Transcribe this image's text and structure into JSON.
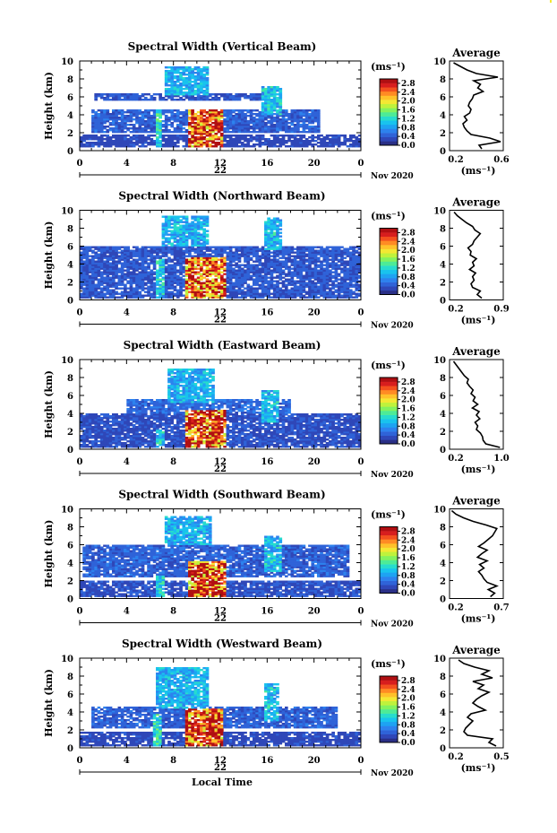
{
  "figure": {
    "xlabel": "Local Time",
    "date_suffix": "Nov 2020"
  },
  "colorscale": [
    "#2a2f86",
    "#2f47b8",
    "#2f63d8",
    "#2d82ee",
    "#1ea3f2",
    "#19c3ee",
    "#27dccd",
    "#4deb97",
    "#83f25f",
    "#bff23c",
    "#f3e833",
    "#ffc12a",
    "#ff8b24",
    "#f3501e",
    "#d71e1e",
    "#b00f12"
  ],
  "chart_data": [
    {
      "type": "heatmap",
      "title": "Spectral Width (Vertical Beam)",
      "ylabel": "Height (km)",
      "xlabel": "",
      "x_ticks": [
        "0",
        "4",
        "8",
        "12",
        "16",
        "20",
        "0"
      ],
      "y_ticks": [
        "0",
        "2",
        "4",
        "6",
        "8",
        "10"
      ],
      "xlim": [
        0,
        24
      ],
      "ylim": [
        0,
        10
      ],
      "date_label": "22",
      "colorbar": {
        "unit": "(ms⁻¹)",
        "ticks": [
          "2.8",
          "2.4",
          "2.0",
          "1.6",
          "1.2",
          "0.8",
          "0.4",
          "0.0"
        ],
        "range": [
          0,
          3.0
        ]
      },
      "regions": [
        {
          "t": [
            0,
            24
          ],
          "h": [
            0.5,
            1.8
          ],
          "v": 0.3
        },
        {
          "t": [
            1,
            20.5
          ],
          "h": [
            2.0,
            4.5
          ],
          "v": 0.45
        },
        {
          "t": [
            1.2,
            17
          ],
          "h": [
            5.6,
            6.4
          ],
          "v": 0.4
        },
        {
          "t": [
            7.2,
            11
          ],
          "h": [
            6.2,
            9.3
          ],
          "v": 0.9
        },
        {
          "t": [
            6.4,
            7.0
          ],
          "h": [
            0.5,
            4.5
          ],
          "v": 1.2
        },
        {
          "t": [
            9.2,
            12.2
          ],
          "h": [
            0.5,
            4.6
          ],
          "v": 2.7
        },
        {
          "t": [
            15.6,
            17.2
          ],
          "h": [
            4.0,
            7.2
          ],
          "v": 1.0
        }
      ],
      "profile": {
        "xlim": [
          0.2,
          0.6
        ],
        "xticks": [
          "0.2",
          "0.6"
        ],
        "xlabel": "(ms⁻¹)",
        "title": "Average",
        "h": [
          0.2,
          0.6,
          1.0,
          1.4,
          1.8,
          2.2,
          2.6,
          3.0,
          3.4,
          3.8,
          4.2,
          4.6,
          5.0,
          5.4,
          5.8,
          6.2,
          6.6,
          7.0,
          7.4,
          7.8,
          8.2,
          8.6,
          9.0,
          9.4,
          9.8
        ],
        "v": [
          0.44,
          0.42,
          0.58,
          0.5,
          0.36,
          0.33,
          0.31,
          0.3,
          0.33,
          0.31,
          0.35,
          0.36,
          0.34,
          0.35,
          0.37,
          0.38,
          0.45,
          0.41,
          0.43,
          0.38,
          0.56,
          0.4,
          0.33,
          0.28,
          0.23
        ]
      }
    },
    {
      "type": "heatmap",
      "title": "Spectral Width (Northward Beam)",
      "ylabel": "Height (km)",
      "xlabel": "",
      "x_ticks": [
        "0",
        "4",
        "8",
        "12",
        "16",
        "20",
        "0"
      ],
      "y_ticks": [
        "0",
        "2",
        "4",
        "6",
        "8",
        "10"
      ],
      "xlim": [
        0,
        24
      ],
      "ylim": [
        0,
        10
      ],
      "date_label": "22",
      "colorbar": {
        "unit": "(ms⁻¹)",
        "ticks": [
          "2.8",
          "2.4",
          "2.0",
          "1.6",
          "1.2",
          "0.8",
          "0.4",
          "0.0"
        ],
        "range": [
          0,
          3.0
        ]
      },
      "regions": [
        {
          "t": [
            0,
            24
          ],
          "h": [
            0.3,
            6.0
          ],
          "v": 0.4
        },
        {
          "t": [
            7.0,
            11.0
          ],
          "h": [
            6.0,
            9.4
          ],
          "v": 0.9
        },
        {
          "t": [
            6.6,
            7.2
          ],
          "h": [
            0.3,
            4.5
          ],
          "v": 1.1
        },
        {
          "t": [
            9.0,
            12.4
          ],
          "h": [
            0.3,
            4.8
          ],
          "v": 2.6
        },
        {
          "t": [
            15.8,
            17.2
          ],
          "h": [
            5.6,
            9.2
          ],
          "v": 1.0
        }
      ],
      "profile": {
        "xlim": [
          0.2,
          0.9
        ],
        "xticks": [
          "0.2",
          "0.9"
        ],
        "xlabel": "(ms⁻¹)",
        "title": "Average",
        "h": [
          0.2,
          0.6,
          1.0,
          1.4,
          1.8,
          2.2,
          2.6,
          3.0,
          3.4,
          3.8,
          4.2,
          4.6,
          5.0,
          5.4,
          5.8,
          6.2,
          6.6,
          7.0,
          7.4,
          7.8,
          8.2,
          8.6,
          9.0,
          9.4,
          9.8
        ],
        "v": [
          0.62,
          0.56,
          0.6,
          0.5,
          0.48,
          0.52,
          0.5,
          0.54,
          0.46,
          0.52,
          0.5,
          0.55,
          0.47,
          0.48,
          0.44,
          0.5,
          0.52,
          0.56,
          0.6,
          0.53,
          0.5,
          0.42,
          0.36,
          0.3,
          0.26
        ]
      }
    },
    {
      "type": "heatmap",
      "title": "Spectral Width (Eastward Beam)",
      "ylabel": "Height (km)",
      "xlabel": "",
      "x_ticks": [
        "0",
        "4",
        "8",
        "12",
        "16",
        "20",
        "0"
      ],
      "y_ticks": [
        "0",
        "2",
        "4",
        "6",
        "8",
        "10"
      ],
      "xlim": [
        0,
        24
      ],
      "ylim": [
        0,
        10
      ],
      "date_label": "22",
      "colorbar": {
        "unit": "(ms⁻¹)",
        "ticks": [
          "2.8",
          "2.4",
          "2.0",
          "1.6",
          "1.2",
          "0.8",
          "0.4",
          "0.0"
        ],
        "range": [
          0,
          3.0
        ]
      },
      "regions": [
        {
          "t": [
            0,
            24
          ],
          "h": [
            0.2,
            4.0
          ],
          "v": 0.35
        },
        {
          "t": [
            4.0,
            18.0
          ],
          "h": [
            4.0,
            5.6
          ],
          "v": 0.5
        },
        {
          "t": [
            7.4,
            11.6
          ],
          "h": [
            5.2,
            9.0
          ],
          "v": 0.9
        },
        {
          "t": [
            6.5,
            7.2
          ],
          "h": [
            0.2,
            2.2
          ],
          "v": 1.0
        },
        {
          "t": [
            9.0,
            12.4
          ],
          "h": [
            0.2,
            4.4
          ],
          "v": 2.6
        },
        {
          "t": [
            15.6,
            17.0
          ],
          "h": [
            3.0,
            6.5
          ],
          "v": 1.0
        }
      ],
      "profile": {
        "xlim": [
          0.2,
          1.0
        ],
        "xticks": [
          "0.2",
          "1.0"
        ],
        "xlabel": "(ms⁻¹)",
        "title": "Average",
        "h": [
          0.2,
          0.6,
          1.0,
          1.4,
          1.8,
          2.2,
          2.6,
          3.0,
          3.4,
          3.8,
          4.2,
          4.6,
          5.0,
          5.4,
          5.8,
          6.2,
          6.6,
          7.0,
          7.4,
          7.8,
          8.2,
          8.6,
          9.0,
          9.4,
          9.8
        ],
        "v": [
          0.95,
          0.74,
          0.7,
          0.69,
          0.66,
          0.6,
          0.62,
          0.58,
          0.65,
          0.6,
          0.64,
          0.54,
          0.62,
          0.55,
          0.58,
          0.52,
          0.55,
          0.5,
          0.46,
          0.48,
          0.42,
          0.38,
          0.34,
          0.3,
          0.26
        ]
      }
    },
    {
      "type": "heatmap",
      "title": "Spectral Width (Southward Beam)",
      "ylabel": "Height (km)",
      "xlabel": "",
      "x_ticks": [
        "0",
        "4",
        "8",
        "12",
        "16",
        "20",
        "0"
      ],
      "y_ticks": [
        "0",
        "2",
        "4",
        "6",
        "8",
        "10"
      ],
      "xlim": [
        0,
        24
      ],
      "ylim": [
        0,
        10
      ],
      "date_label": "22",
      "colorbar": {
        "unit": "(ms⁻¹)",
        "ticks": [
          "2.8",
          "2.4",
          "2.0",
          "1.6",
          "1.2",
          "0.8",
          "0.4",
          "0.0"
        ],
        "range": [
          0,
          3.0
        ]
      },
      "regions": [
        {
          "t": [
            0,
            24
          ],
          "h": [
            0.2,
            2.0
          ],
          "v": 0.35
        },
        {
          "t": [
            0.3,
            23
          ],
          "h": [
            2.4,
            6.0
          ],
          "v": 0.45
        },
        {
          "t": [
            7.2,
            11.2
          ],
          "h": [
            6.0,
            9.2
          ],
          "v": 0.9
        },
        {
          "t": [
            6.6,
            7.2
          ],
          "h": [
            0.2,
            2.6
          ],
          "v": 1.1
        },
        {
          "t": [
            9.2,
            12.4
          ],
          "h": [
            0.2,
            4.2
          ],
          "v": 2.6
        },
        {
          "t": [
            15.8,
            17.2
          ],
          "h": [
            3.0,
            7.0
          ],
          "v": 1.0
        }
      ],
      "profile": {
        "xlim": [
          0.2,
          0.7
        ],
        "xticks": [
          "0.2",
          "0.7"
        ],
        "xlabel": "(ms⁻¹)",
        "title": "Average",
        "h": [
          0.2,
          0.6,
          1.0,
          1.4,
          1.8,
          2.2,
          2.6,
          3.0,
          3.4,
          3.8,
          4.2,
          4.6,
          5.0,
          5.4,
          5.8,
          6.2,
          6.6,
          7.0,
          7.4,
          7.8,
          8.2,
          8.6,
          9.0,
          9.4,
          9.8
        ],
        "v": [
          0.58,
          0.62,
          0.56,
          0.64,
          0.55,
          0.52,
          0.5,
          0.47,
          0.52,
          0.48,
          0.55,
          0.46,
          0.5,
          0.55,
          0.47,
          0.52,
          0.56,
          0.6,
          0.62,
          0.64,
          0.54,
          0.42,
          0.33,
          0.26,
          0.22
        ]
      }
    },
    {
      "type": "heatmap",
      "title": "Spectral Width (Westward Beam)",
      "ylabel": "Height (km)",
      "xlabel": "Local Time",
      "x_ticks": [
        "0",
        "4",
        "8",
        "12",
        "16",
        "20",
        "0"
      ],
      "y_ticks": [
        "0",
        "2",
        "4",
        "6",
        "8",
        "10"
      ],
      "xlim": [
        0,
        24
      ],
      "ylim": [
        0,
        10
      ],
      "date_label": "22",
      "colorbar": {
        "unit": "(ms⁻¹)",
        "ticks": [
          "2.8",
          "2.4",
          "2.0",
          "1.6",
          "1.2",
          "0.8",
          "0.4",
          "0.0"
        ],
        "range": [
          0,
          3.0
        ]
      },
      "regions": [
        {
          "t": [
            0,
            24
          ],
          "h": [
            0.2,
            1.8
          ],
          "v": 0.3
        },
        {
          "t": [
            1,
            22
          ],
          "h": [
            2.2,
            4.5
          ],
          "v": 0.45
        },
        {
          "t": [
            6.4,
            11.0
          ],
          "h": [
            4.5,
            9.0
          ],
          "v": 0.9
        },
        {
          "t": [
            6.3,
            7.0
          ],
          "h": [
            0.2,
            3.8
          ],
          "v": 1.2
        },
        {
          "t": [
            9.0,
            12.2
          ],
          "h": [
            0.2,
            4.4
          ],
          "v": 2.7
        },
        {
          "t": [
            15.8,
            17.0
          ],
          "h": [
            3.0,
            7.2
          ],
          "v": 1.0
        }
      ],
      "profile": {
        "xlim": [
          0.2,
          0.5
        ],
        "xticks": [
          "0.2",
          "0.5"
        ],
        "xlabel": "(ms⁻¹)",
        "title": "Average",
        "h": [
          0.2,
          0.6,
          1.0,
          1.4,
          1.8,
          2.2,
          2.6,
          3.0,
          3.4,
          3.8,
          4.2,
          4.6,
          5.0,
          5.4,
          5.8,
          6.2,
          6.6,
          7.0,
          7.4,
          7.8,
          8.2,
          8.6,
          9.0,
          9.4,
          9.8
        ],
        "v": [
          0.46,
          0.42,
          0.44,
          0.3,
          0.28,
          0.29,
          0.31,
          0.33,
          0.3,
          0.32,
          0.4,
          0.36,
          0.33,
          0.35,
          0.38,
          0.42,
          0.36,
          0.39,
          0.33,
          0.44,
          0.38,
          0.42,
          0.34,
          0.28,
          0.25
        ]
      }
    }
  ]
}
